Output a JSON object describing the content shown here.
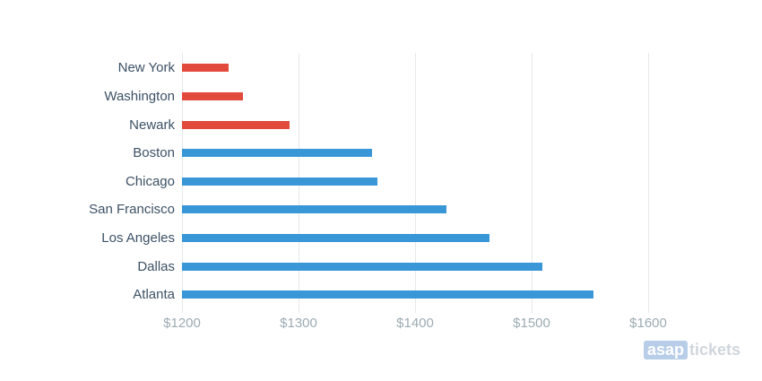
{
  "chart_data": {
    "type": "bar",
    "orientation": "horizontal",
    "title": "",
    "xlabel": "",
    "ylabel": "",
    "categories": [
      "New York",
      "Washington",
      "Newark",
      "Boston",
      "Chicago",
      "San Francisco",
      "Los Angeles",
      "Dallas",
      "Atlanta"
    ],
    "values": [
      1240,
      1252,
      1292,
      1363,
      1368,
      1427,
      1464,
      1509,
      1553
    ],
    "value_unit": "USD",
    "bar_colors": [
      "#e24a3c",
      "#e24a3c",
      "#e24a3c",
      "#3996d7",
      "#3996d7",
      "#3996d7",
      "#3996d7",
      "#3996d7",
      "#3996d7"
    ],
    "x_ticks": [
      {
        "label": "$1200",
        "value": 1200
      },
      {
        "label": "$1300",
        "value": 1300
      },
      {
        "label": "$1400",
        "value": 1400
      },
      {
        "label": "$1500",
        "value": 1500
      },
      {
        "label": "$1600",
        "value": 1600
      }
    ],
    "xlim": [
      1200,
      1640
    ],
    "grid": "vertical-only",
    "legend": "none"
  },
  "colors": {
    "red_bar": "#e24a3c",
    "blue_bar": "#3996d7",
    "gridline": "#e5e8e9",
    "category_label": "#3d5166",
    "tick_label": "#9dabb2",
    "background": "#ffffff"
  },
  "branding": {
    "asap": "asap",
    "tickets": "tickets"
  }
}
